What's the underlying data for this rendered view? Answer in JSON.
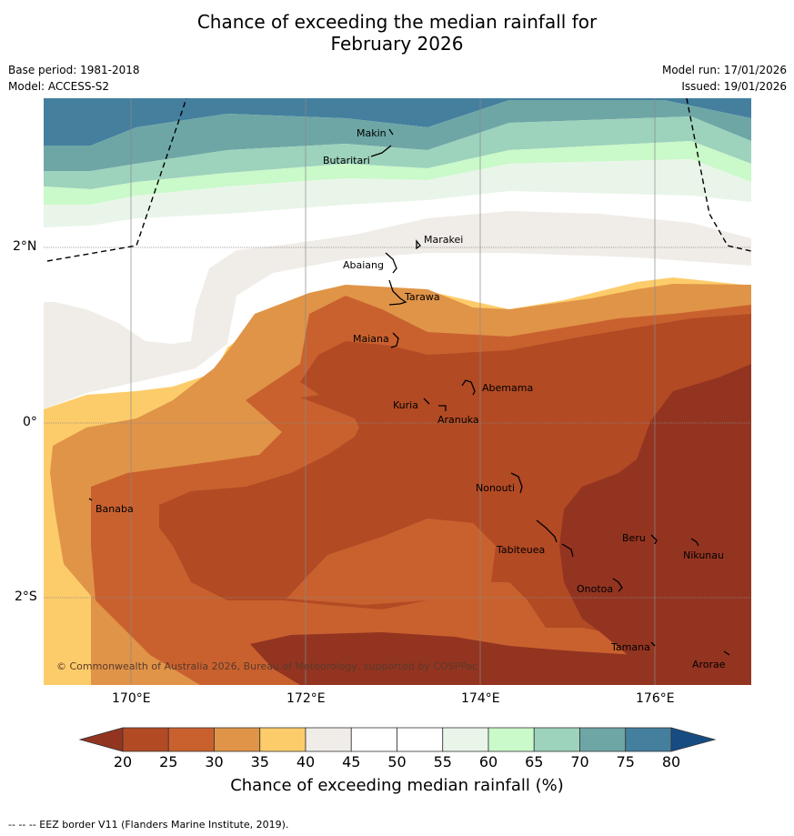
{
  "title_line1": "Chance of exceeding the median rainfall for",
  "title_line2": "February 2026",
  "base_period": "Base period: 1981-2018",
  "model": "Model: ACCESS-S2",
  "model_run": "Model run: 17/01/2026",
  "issued": "Issued: 19/01/2026",
  "copyright": "© Commonwealth of Australia 2026, Bureau of Meteorology, supported by COSPPac",
  "axes": {
    "lat_labels": [
      "2°N",
      "0°",
      "2°S"
    ],
    "lon_labels": [
      "170°E",
      "172°E",
      "174°E",
      "176°E"
    ]
  },
  "islands": [
    "Makin",
    "Butaritari",
    "Marakei",
    "Abaiang",
    "Tarawa",
    "Maiana",
    "Abemama",
    "Kuria",
    "Aranuka",
    "Nonouti",
    "Banaba",
    "Tabiteuea",
    "Beru",
    "Nikunau",
    "Onotoa",
    "Tamana",
    "Arorae"
  ],
  "colorbar": {
    "ticks": [
      "20",
      "25",
      "30",
      "35",
      "40",
      "45",
      "50",
      "55",
      "60",
      "65",
      "70",
      "75",
      "80"
    ],
    "colors": [
      "#b24a24",
      "#c9612f",
      "#e09448",
      "#fdcc6a",
      "#f0ede8",
      "#ffffff",
      "#ffffff",
      "#eaf5ea",
      "#caf9ca",
      "#9dd2bc",
      "#6ea6a6",
      "#447f9e"
    ],
    "low_extend_color": "#933421",
    "high_extend_color": "#174c83",
    "title": "Chance of exceeding median rainfall (%)"
  },
  "footer": "--  --  -- EEZ border V11 (Flanders Marine Institute, 2019)."
}
